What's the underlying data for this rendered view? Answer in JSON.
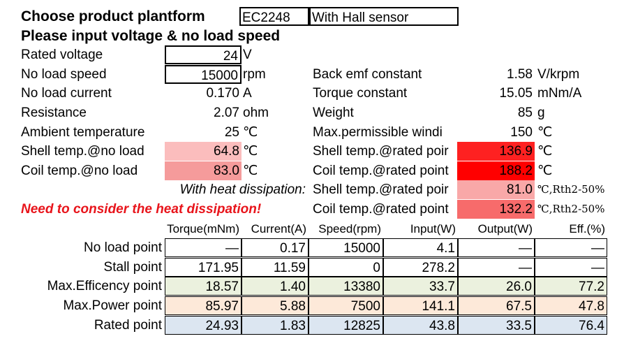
{
  "header": {
    "title": "Choose product plantform",
    "model": "EC2248",
    "variant": "With Hall sensor",
    "subtitle": "Please input voltage & no load speed"
  },
  "params_left": [
    {
      "label": "Rated voltage",
      "value": "24",
      "unit": "V"
    },
    {
      "label": "No load speed",
      "value": "15000",
      "unit": "rpm"
    },
    {
      "label": "No load current",
      "value": "0.170",
      "unit": "A"
    },
    {
      "label": "Resistance",
      "value": "2.07",
      "unit": "ohm"
    },
    {
      "label": "Ambient temperature",
      "value": "25",
      "unit": "℃"
    },
    {
      "label": "Shell temp.@no load",
      "value": "64.8",
      "unit": "℃"
    },
    {
      "label": "Coil temp.@no load",
      "value": "83.0",
      "unit": "℃"
    }
  ],
  "params_right": [
    {
      "label": "Back emf constant",
      "value": "1.58",
      "unit": "V/krpm"
    },
    {
      "label": "Torque constant",
      "value": "15.05",
      "unit": "mNm/A"
    },
    {
      "label": "Weight",
      "value": "85",
      "unit": "g"
    },
    {
      "label": "Max.permissible windi",
      "value": "150",
      "unit": "℃"
    },
    {
      "label": "Shell temp.@rated poir",
      "value": "136.9",
      "unit": "℃"
    },
    {
      "label": "Coil temp.@rated point",
      "value": "188.2",
      "unit": "℃"
    },
    {
      "label": "Shell temp.@rated poir",
      "value": "81.0",
      "unit": "℃,Rth2-50%"
    },
    {
      "label": "Coil temp.@rated point",
      "value": "132.2",
      "unit": "℃,Rth2-50%"
    }
  ],
  "heat_note": "With heat dissipation:",
  "warning": "Need to consider the heat dissipation!",
  "table": {
    "columns": [
      "Torque(mNm)",
      "Current(A)",
      "Speed(rpm)",
      "Input(W)",
      "Output(W)",
      "Eff.(%)"
    ],
    "rows": [
      {
        "label": "No load point",
        "cells": [
          "—",
          "0.17",
          "15000",
          "4.1",
          "—",
          "—"
        ]
      },
      {
        "label": "Stall point",
        "cells": [
          "171.95",
          "11.59",
          "0",
          "278.2",
          "—",
          "—"
        ]
      },
      {
        "label": "Max.Efficency point",
        "cells": [
          "18.57",
          "1.40",
          "13380",
          "33.7",
          "26.0",
          "77.2"
        ]
      },
      {
        "label": "Max.Power point",
        "cells": [
          "85.97",
          "5.88",
          "7500",
          "141.1",
          "67.5",
          "47.8"
        ]
      },
      {
        "label": "Rated point",
        "cells": [
          "24.93",
          "1.83",
          "12825",
          "43.8",
          "33.5",
          "76.4"
        ]
      }
    ]
  }
}
